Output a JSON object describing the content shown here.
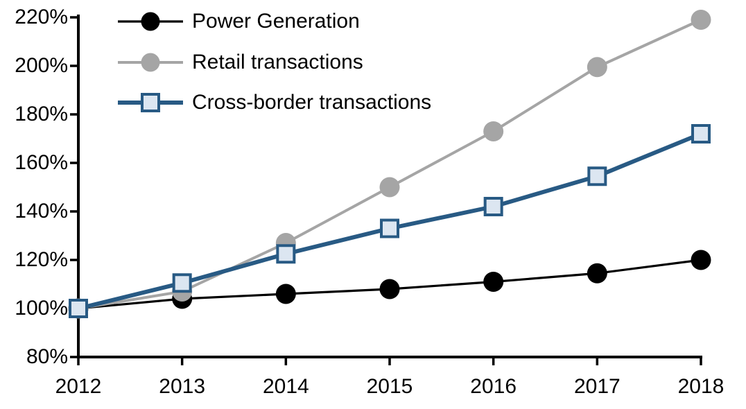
{
  "chart_data": {
    "type": "line",
    "title": "",
    "xlabel": "",
    "ylabel": "",
    "grid": false,
    "legend_position": "top-left-inside",
    "background_color": "#ffffff",
    "axis_color": "#000000",
    "ylim": [
      80,
      220
    ],
    "y_tick_step": 20,
    "y_ticks": [
      220,
      200,
      180,
      160,
      140,
      120,
      100,
      80
    ],
    "y_tick_labels": [
      "220%",
      "200%",
      "180%",
      "160%",
      "140%",
      "120%",
      "100%",
      "80%"
    ],
    "x": [
      2012,
      2013,
      2014,
      2015,
      2016,
      2017,
      2018
    ],
    "x_tick_labels": [
      "2012",
      "2013",
      "2014",
      "2015",
      "2016",
      "2017",
      "2018"
    ],
    "series": [
      {
        "name": "Power Generation",
        "values": [
          100,
          104,
          106,
          108,
          111,
          114.5,
          120
        ],
        "color": "#000000",
        "marker": "circle",
        "marker_fill": "#000000",
        "line_width": 3.2
      },
      {
        "name": "Retail transactions",
        "values": [
          100,
          107,
          127,
          150,
          173,
          199.5,
          219
        ],
        "color": "#A5A5A5",
        "marker": "circle",
        "marker_fill": "#A5A5A5",
        "line_width": 4
      },
      {
        "name": "Cross-border transactions",
        "values": [
          100,
          110.5,
          122.5,
          133,
          142,
          154.5,
          172
        ],
        "color": "#285A84",
        "marker": "square",
        "marker_fill": "#DCE6F1",
        "line_width": 6
      }
    ]
  }
}
